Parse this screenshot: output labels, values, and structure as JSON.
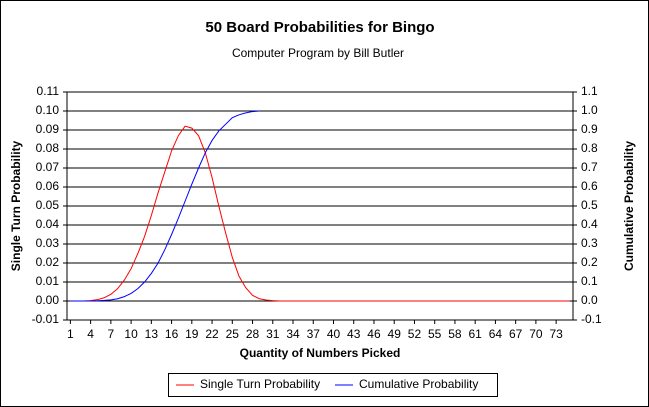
{
  "chart_data": {
    "type": "line",
    "title": "50 Board Probabilities for Bingo",
    "subtitle": "Computer Program by Bill Butler",
    "x_label": "Quantity of Numbers Picked",
    "y_label": "Single Turn Probability",
    "y2_label": "Cumulative Probability",
    "x": [
      1,
      2,
      3,
      4,
      5,
      6,
      7,
      8,
      9,
      10,
      11,
      12,
      13,
      14,
      15,
      16,
      17,
      18,
      19,
      20,
      21,
      22,
      23,
      24,
      25,
      26,
      27,
      28,
      29,
      30,
      31,
      32,
      33,
      34,
      35,
      36,
      37,
      38,
      39,
      40,
      41,
      42,
      43,
      44,
      45,
      46,
      47,
      48,
      49,
      50,
      51,
      52,
      53,
      54,
      55,
      56,
      57,
      58,
      59,
      60,
      61,
      62,
      63,
      64,
      65,
      66,
      67,
      68,
      69,
      70,
      71,
      72,
      73,
      74,
      75
    ],
    "xlim": [
      0.5,
      75.5
    ],
    "xticks": [
      1,
      4,
      7,
      10,
      13,
      16,
      19,
      22,
      25,
      28,
      31,
      34,
      37,
      40,
      43,
      46,
      49,
      52,
      55,
      58,
      61,
      64,
      67,
      70,
      73
    ],
    "ylim": [
      -0.01,
      0.11
    ],
    "yticks": [
      -0.01,
      {
        "value": 0,
        "label": "0.00"
      },
      0.01,
      0.02,
      0.03,
      0.04,
      0.05,
      0.06,
      0.07,
      0.08,
      0.09,
      {
        "value": 0.1,
        "label": "0.10"
      },
      0.11
    ],
    "y2lim": [
      -0.1,
      1.1
    ],
    "y2ticks": [
      -0.1,
      {
        "value": 0,
        "label": "0.0"
      },
      0.1,
      0.2,
      0.3,
      0.4,
      0.5,
      0.6,
      0.7,
      0.8,
      0.9,
      {
        "value": 1,
        "label": "1.0"
      },
      1.1
    ],
    "grid": true,
    "legend": "bottom",
    "series": [
      {
        "name": "Single Turn Probability",
        "color": "#ff0000",
        "values": [
          0,
          0,
          0,
          0.0002,
          0.0007,
          0.0017,
          0.0035,
          0.0065,
          0.011,
          0.017,
          0.025,
          0.034,
          0.045,
          0.057,
          0.068,
          0.079,
          0.087,
          0.092,
          0.091,
          0.087,
          0.078,
          0.065,
          0.05,
          0.036,
          0.023,
          0.013,
          0.007,
          0.003,
          0.0012,
          0.0005,
          0.0002,
          0,
          0,
          0,
          0,
          0,
          0,
          0,
          0,
          0,
          0,
          0,
          0,
          0,
          0,
          0,
          0,
          0,
          0,
          0,
          0,
          0,
          0,
          0,
          0,
          0,
          0,
          0,
          0,
          0,
          0,
          0,
          0,
          0,
          0,
          0,
          0,
          0,
          0,
          0,
          0,
          0,
          0,
          0,
          0
        ]
      },
      {
        "name": "Cumulative Probability",
        "color": "#0000ff",
        "axis": "y2",
        "values": [
          0,
          0,
          0,
          0.0002,
          0.001,
          0.003,
          0.006,
          0.012,
          0.023,
          0.04,
          0.065,
          0.1,
          0.145,
          0.2,
          0.27,
          0.35,
          0.435,
          0.525,
          0.615,
          0.7,
          0.78,
          0.845,
          0.895,
          0.93,
          0.965,
          0.98,
          0.99,
          0.997,
          1.0,
          null,
          null,
          null,
          null,
          null,
          null,
          null,
          null,
          null,
          null,
          null,
          null,
          null,
          null,
          null,
          null,
          null,
          null,
          null,
          null,
          null,
          null,
          null,
          null,
          null,
          null,
          null,
          null,
          null,
          null,
          null,
          null,
          null,
          null,
          null,
          null,
          null,
          null,
          null,
          null,
          null,
          null,
          null,
          null,
          null,
          null
        ]
      }
    ]
  }
}
